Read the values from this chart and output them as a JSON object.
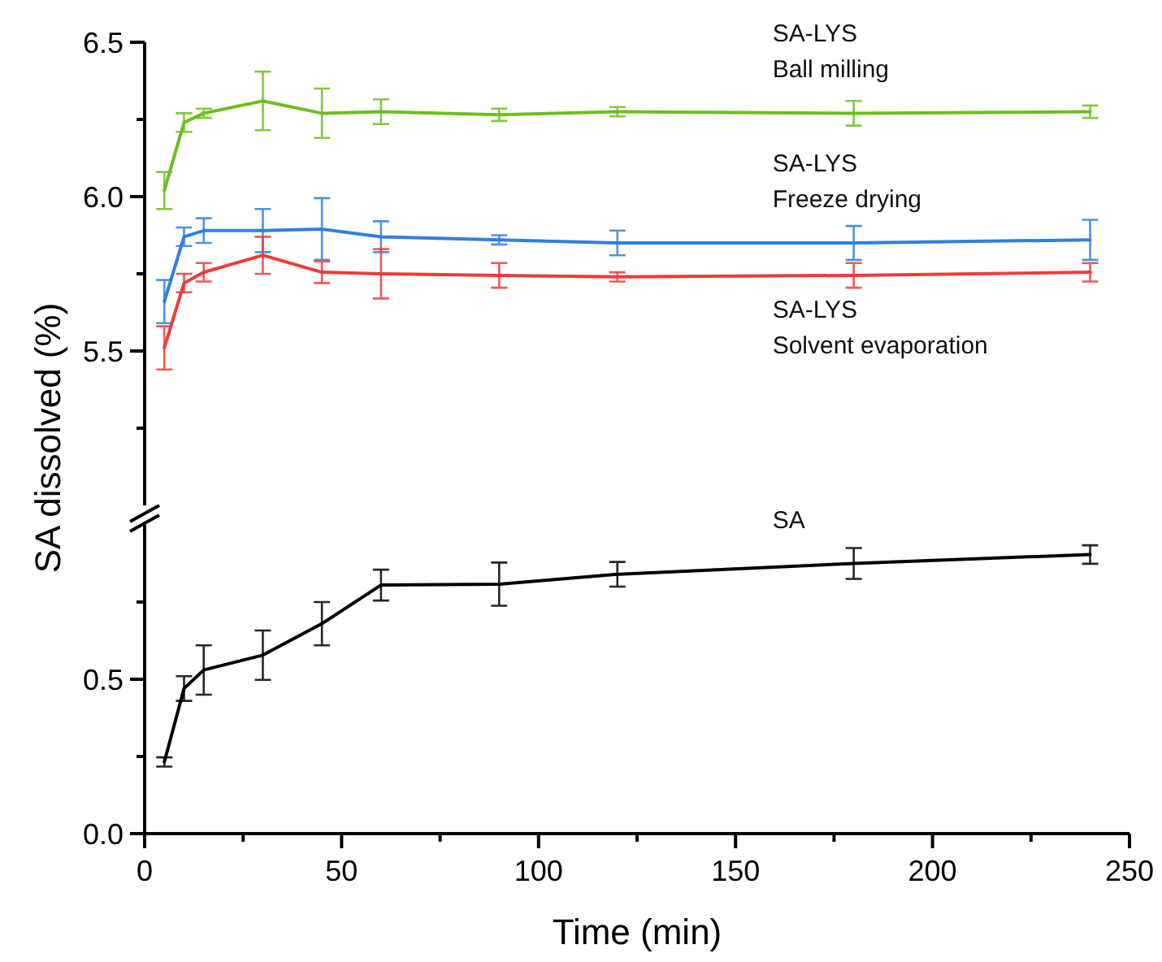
{
  "chart_data": [
    {
      "type": "line",
      "ylabel": "SA dissolved (%)",
      "xlim": [
        0,
        250
      ],
      "ylim": [
        5.0,
        6.5
      ],
      "yticks": [
        {
          "value": 5.25,
          "label": null
        },
        5.5,
        {
          "value": 5.75,
          "label": null
        },
        {
          "value": 6.0,
          "label": "6.0"
        },
        {
          "value": 6.25,
          "label": null
        },
        6.5
      ],
      "tick_labels": "y",
      "grid": false,
      "line_style": "solid",
      "x": [
        5,
        10,
        15,
        30,
        45,
        60,
        90,
        120,
        180,
        240
      ],
      "series": [
        {
          "name": "SA-LYS\nBall milling",
          "color": "#6cbf1e",
          "values": [
            6.02,
            6.24,
            6.27,
            6.31,
            6.27,
            6.275,
            6.265,
            6.275,
            6.27,
            6.275
          ],
          "errors": [
            0.06,
            0.03,
            0.015,
            0.095,
            0.08,
            0.04,
            0.02,
            0.015,
            0.04,
            0.02
          ]
        },
        {
          "name": "SA-LYS\nFreeze drying",
          "color": "#2f7fe0",
          "values": [
            5.66,
            5.87,
            5.89,
            5.89,
            5.895,
            5.87,
            5.86,
            5.85,
            5.85,
            5.86
          ],
          "errors": [
            0.07,
            0.03,
            0.04,
            0.07,
            0.1,
            0.05,
            0.015,
            0.04,
            0.055,
            0.065
          ]
        },
        {
          "name": "SA-LYS\nSolvent evaporation",
          "color": "#ef3b3b",
          "values": [
            5.51,
            5.72,
            5.755,
            5.81,
            5.755,
            5.75,
            5.745,
            5.74,
            5.745,
            5.755
          ],
          "errors": [
            0.07,
            0.03,
            0.03,
            0.06,
            0.035,
            0.08,
            0.04,
            0.015,
            0.04,
            0.03
          ]
        }
      ]
    },
    {
      "type": "line",
      "xlabel": "Time (min)",
      "xlim": [
        0,
        250
      ],
      "xticks": [
        0,
        {
          "value": 25,
          "label": null
        },
        50,
        {
          "value": 75,
          "label": null
        },
        100,
        {
          "value": 125,
          "label": null
        },
        150,
        {
          "value": 175,
          "label": null
        },
        200,
        {
          "value": 225,
          "label": null
        },
        250
      ],
      "ylim": [
        0,
        1.0
      ],
      "yticks": [
        {
          "value": 0,
          "label": "0.0"
        },
        {
          "value": 0.25,
          "label": null
        },
        0.5,
        {
          "value": 0.75,
          "label": null
        }
      ],
      "grid": false,
      "line_style": "solid",
      "x": [
        5,
        10,
        15,
        30,
        45,
        60,
        90,
        120,
        180,
        240
      ],
      "series": [
        {
          "name": "SA",
          "color": "#000000",
          "values": [
            0.232,
            0.47,
            0.53,
            0.578,
            0.68,
            0.805,
            0.808,
            0.84,
            0.875,
            0.904
          ],
          "errors": [
            0.015,
            0.04,
            0.08,
            0.08,
            0.07,
            0.05,
            0.07,
            0.04,
            0.05,
            0.03
          ]
        }
      ]
    }
  ]
}
